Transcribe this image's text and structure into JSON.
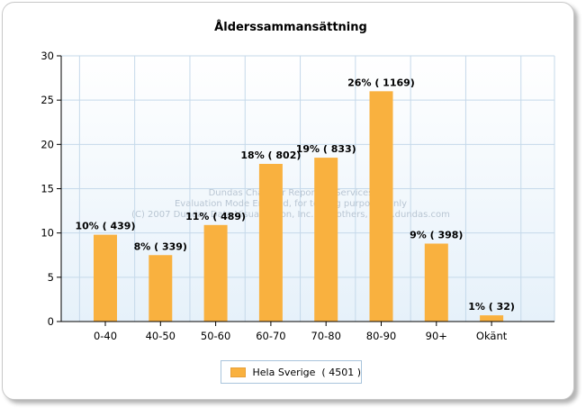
{
  "chart_data": {
    "type": "bar",
    "title": "Ålderssammansättning",
    "xlabel": "",
    "ylabel": "",
    "categories": [
      "0-40",
      "40-50",
      "50-60",
      "60-70",
      "70-80",
      "80-90",
      "90+",
      "Okänt"
    ],
    "series": [
      {
        "name": "Hela Sverige  ( 4501 )",
        "values": [
          9.8,
          7.5,
          10.9,
          17.8,
          18.5,
          26.0,
          8.8,
          0.7
        ],
        "data_labels": [
          "10% ( 439)",
          "8% ( 339)",
          "11% ( 489)",
          "18% ( 802)",
          "19% ( 833)",
          "26% ( 1169)",
          "9% ( 398)",
          "1% ( 32)"
        ]
      }
    ],
    "ylim": [
      0,
      30
    ],
    "yticks": [
      "0",
      "5",
      "10",
      "15",
      "20",
      "25",
      "30"
    ],
    "grid": true,
    "legend_position": "bottom",
    "bar_color": "#f9b13f",
    "watermark": [
      "Dundas Chart for Reporting Services",
      "Evaluation Mode Enabled, for testing purposes only",
      "(C) 2007 Dundas Data Visualization, Inc. and others, www.dundas.com"
    ]
  }
}
